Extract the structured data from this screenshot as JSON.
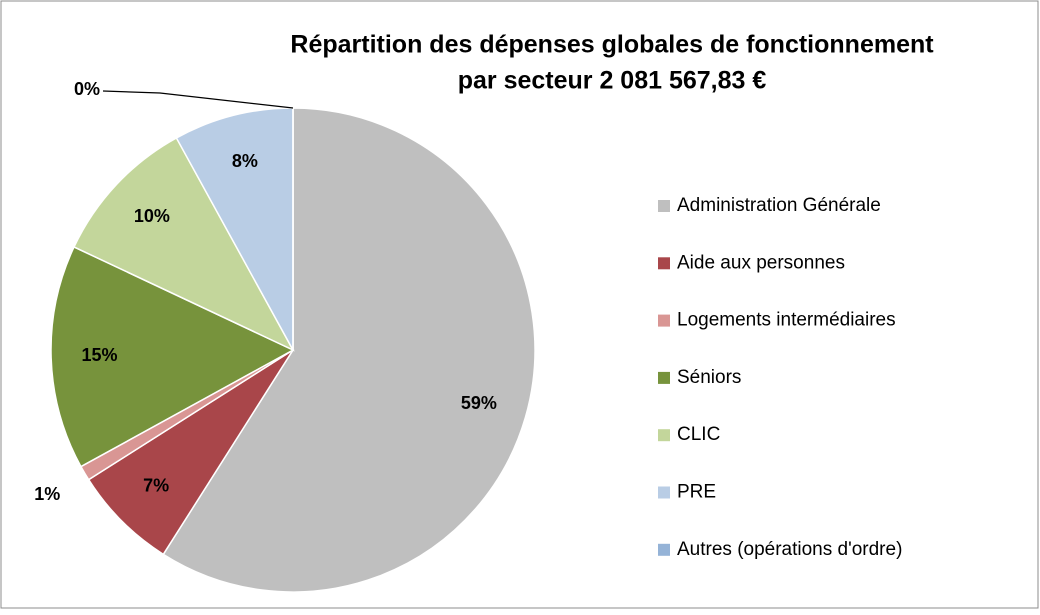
{
  "chart_data": {
    "type": "pie",
    "title": [
      "Répartition des dépenses globales de fonctionnement",
      "par secteur  2 081 567,83 €"
    ],
    "categories": [
      "Administration Générale",
      "Aide aux personnes",
      "Logements intermédiaires",
      "Séniors",
      "CLIC",
      "PRE",
      "Autres (opérations d'ordre)"
    ],
    "values": [
      59,
      7,
      1,
      15,
      10,
      8,
      0
    ],
    "value_labels": [
      "59%",
      "7%",
      "1%",
      "15%",
      "10%",
      "8%",
      "0%"
    ],
    "colors": [
      "#bfbfbf",
      "#a9464a",
      "#d99694",
      "#77933c",
      "#c3d69b",
      "#b9cde5",
      "#95b3d7"
    ],
    "legend": "right"
  }
}
